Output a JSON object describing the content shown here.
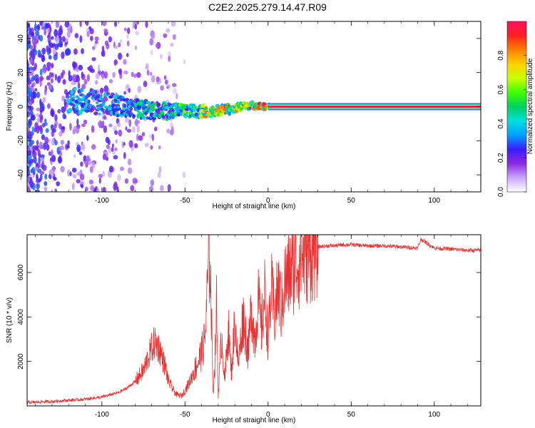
{
  "title": "C2E2.2025.279.14.47.R09",
  "chart_data": [
    {
      "type": "heatmap",
      "xlabel": "Height of straight line (km)",
      "ylabel": "Frequency (Hz)",
      "xlim": [
        -145,
        128
      ],
      "ylim": [
        -50,
        50
      ],
      "xticks": [
        -100,
        -50,
        0,
        50,
        100
      ],
      "yticks": [
        -40,
        -20,
        0,
        20,
        40
      ],
      "colorbar": {
        "label": "Normalized spectral amplitude",
        "range": [
          0,
          1
        ],
        "ticks": [
          "0.0",
          "0.2",
          "0.4",
          "0.6",
          "0.8"
        ],
        "colors": [
          "#ffffff",
          "#c9a6ff",
          "#8a2be2",
          "#3b1cff",
          "#00a0ff",
          "#00e0e0",
          "#00d060",
          "#40ff00",
          "#c8ff00",
          "#ffd000",
          "#ff8000",
          "#ff2020",
          "#ff1060"
        ]
      },
      "ridge": {
        "description_points": [
          {
            "x": -120,
            "y": 4,
            "amp": 0.35
          },
          {
            "x": -100,
            "y": 2,
            "amp": 0.35
          },
          {
            "x": -80,
            "y": -1,
            "amp": 0.45
          },
          {
            "x": -60,
            "y": -3,
            "amp": 0.45
          },
          {
            "x": -50,
            "y": -2,
            "amp": 0.55
          },
          {
            "x": -35,
            "y": -3,
            "amp": 0.75
          },
          {
            "x": -20,
            "y": -1,
            "amp": 0.8
          },
          {
            "x": -10,
            "y": 1,
            "amp": 0.8
          },
          {
            "x": 0,
            "y": 0,
            "amp": 0.95
          },
          {
            "x": 128,
            "y": 0,
            "amp": 0.95
          }
        ]
      },
      "noise_region": {
        "x_from": -145,
        "x_to": -50,
        "amp": 0.25
      }
    },
    {
      "type": "line",
      "xlabel": "Height of straight line (km)",
      "ylabel": "SNR (10 * v/v)",
      "xlim": [
        -145,
        128
      ],
      "ylim": [
        0,
        7700
      ],
      "xticks": [
        -100,
        -50,
        0,
        50,
        100
      ],
      "yticks": [
        2000,
        4000,
        6000
      ],
      "line_color": "#e83030",
      "series": [
        {
          "x": [
            -145,
            -130,
            -120,
            -110,
            -100,
            -95,
            -90,
            -85,
            -80,
            -75,
            -72,
            -70,
            -68,
            -65,
            -62,
            -60,
            -57,
            -55,
            -52,
            -50,
            -47,
            -45,
            -42,
            -40,
            -38,
            -36,
            -35,
            -34,
            -33,
            -32,
            -31,
            -30,
            -28,
            -26,
            -24,
            -22,
            -20,
            -18,
            -15,
            -12,
            -10,
            -8,
            -6,
            -4,
            -2,
            0,
            2,
            4,
            6,
            8,
            10,
            12,
            15,
            18,
            20,
            22,
            25,
            28,
            30,
            35,
            40,
            45,
            50,
            60,
            70,
            80,
            90,
            92,
            100,
            110,
            120,
            128
          ],
          "y": [
            150,
            200,
            250,
            300,
            400,
            500,
            600,
            800,
            1100,
            1600,
            2200,
            2600,
            2900,
            2500,
            1800,
            1100,
            700,
            500,
            450,
            700,
            1100,
            1500,
            2000,
            2400,
            3000,
            6000,
            7000,
            3500,
            600,
            2000,
            4500,
            500,
            3200,
            1100,
            3600,
            1500,
            3900,
            1800,
            4100,
            2400,
            4500,
            2900,
            4800,
            3400,
            5000,
            3000,
            5200,
            4000,
            5400,
            4300,
            5600,
            5800,
            6200,
            6500,
            6700,
            6900,
            7000,
            7100,
            7150,
            7200,
            7200,
            7250,
            7250,
            7200,
            7200,
            7150,
            7100,
            7500,
            7100,
            7050,
            7000,
            7000
          ]
        }
      ]
    }
  ]
}
